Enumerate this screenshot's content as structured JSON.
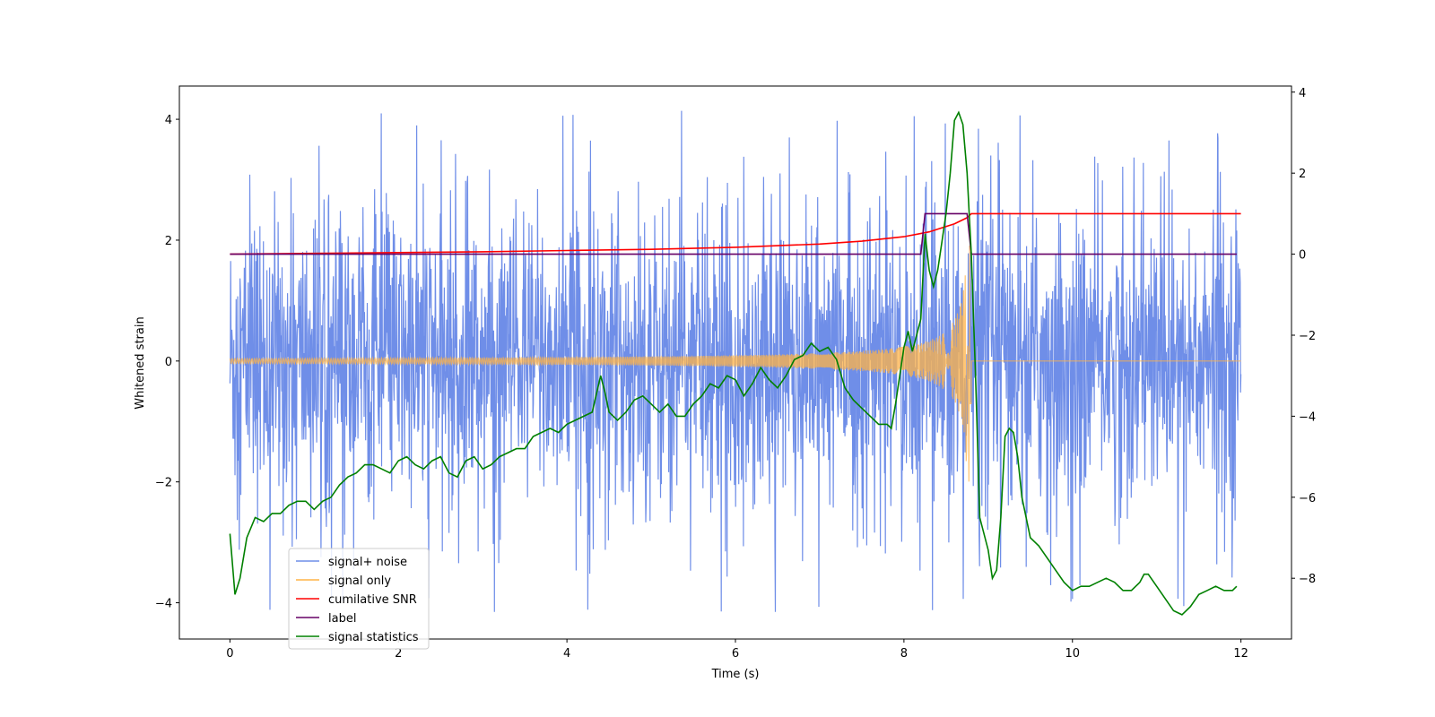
{
  "chart_data": {
    "type": "line",
    "title": "",
    "xlabel": "Time (s)",
    "ylabel": "Whitened strain",
    "xlim": [
      -0.6,
      12.6
    ],
    "ylim": [
      -4.6,
      4.55
    ],
    "y2lim": [
      -9.5,
      4.15
    ],
    "xticks": [
      0,
      2,
      4,
      6,
      8,
      10,
      12
    ],
    "yticks": [
      -4,
      -2,
      0,
      2,
      4
    ],
    "y2ticks": [
      -8,
      -6,
      -4,
      -2,
      0,
      2,
      4
    ],
    "xtick_labels": [
      "0",
      "2",
      "4",
      "6",
      "8",
      "10",
      "12"
    ],
    "ytick_labels": [
      "−4",
      "−2",
      "0",
      "2",
      "4"
    ],
    "y2tick_labels": [
      "−8",
      "−6",
      "−4",
      "−2",
      "0",
      "2",
      "4"
    ],
    "legend_position": "lower-left",
    "series": [
      {
        "name": "signal+ noise",
        "axis": "left",
        "color": "#6f8ee8",
        "kind": "noise_band",
        "x_range": [
          0,
          12
        ],
        "typical_range": [
          -1.4,
          1.4
        ],
        "peak_range": [
          -4.15,
          4.15
        ]
      },
      {
        "name": "signal only",
        "axis": "left",
        "color": "#ffb347",
        "kind": "chirp",
        "x_range": [
          0,
          12
        ],
        "merger_time": 8.8,
        "start_amplitude": 0.04,
        "peak_amplitude": 2.0,
        "after_merger_value": 0
      },
      {
        "name": "cumilative SNR",
        "axis": "right",
        "color": "#ff0000",
        "x": [
          0,
          1,
          2,
          3,
          4,
          5,
          6,
          7,
          7.5,
          8,
          8.3,
          8.6,
          8.75,
          8.8,
          12
        ],
        "values": [
          0,
          0.02,
          0.04,
          0.06,
          0.09,
          0.12,
          0.17,
          0.25,
          0.32,
          0.43,
          0.55,
          0.75,
          0.9,
          1.0,
          1.0
        ]
      },
      {
        "name": "label",
        "axis": "right",
        "color": "#660066",
        "x": [
          0,
          8.2,
          8.25,
          8.75,
          8.8,
          11.95
        ],
        "values": [
          0,
          0,
          1,
          1,
          0,
          0
        ]
      },
      {
        "name": "signal statistics",
        "axis": "right",
        "color": "#008000",
        "x": [
          0,
          0.06,
          0.12,
          0.2,
          0.3,
          0.4,
          0.5,
          0.6,
          0.7,
          0.8,
          0.9,
          1.0,
          1.1,
          1.2,
          1.3,
          1.4,
          1.5,
          1.6,
          1.7,
          1.8,
          1.9,
          2.0,
          2.1,
          2.2,
          2.3,
          2.4,
          2.5,
          2.6,
          2.7,
          2.8,
          2.9,
          3.0,
          3.1,
          3.2,
          3.3,
          3.4,
          3.5,
          3.6,
          3.7,
          3.8,
          3.9,
          4.0,
          4.1,
          4.2,
          4.3,
          4.4,
          4.45,
          4.5,
          4.6,
          4.7,
          4.8,
          4.9,
          5.0,
          5.1,
          5.2,
          5.3,
          5.4,
          5.5,
          5.6,
          5.7,
          5.8,
          5.9,
          6.0,
          6.1,
          6.2,
          6.3,
          6.4,
          6.5,
          6.6,
          6.7,
          6.8,
          6.9,
          7.0,
          7.1,
          7.2,
          7.3,
          7.4,
          7.5,
          7.6,
          7.7,
          7.8,
          7.85,
          7.9,
          8.0,
          8.05,
          8.1,
          8.2,
          8.25,
          8.3,
          8.35,
          8.4,
          8.45,
          8.5,
          8.55,
          8.6,
          8.65,
          8.7,
          8.75,
          8.8,
          8.85,
          8.9,
          9.0,
          9.05,
          9.1,
          9.15,
          9.2,
          9.25,
          9.3,
          9.35,
          9.4,
          9.5,
          9.6,
          9.7,
          9.8,
          9.9,
          10.0,
          10.1,
          10.2,
          10.3,
          10.4,
          10.5,
          10.6,
          10.7,
          10.8,
          10.85,
          10.9,
          11.0,
          11.1,
          11.2,
          11.3,
          11.4,
          11.5,
          11.6,
          11.7,
          11.8,
          11.9,
          11.95
        ],
        "values": [
          -6.9,
          -8.4,
          -8.0,
          -7.0,
          -6.5,
          -6.6,
          -6.4,
          -6.4,
          -6.2,
          -6.1,
          -6.1,
          -6.3,
          -6.1,
          -6.0,
          -5.7,
          -5.5,
          -5.4,
          -5.2,
          -5.2,
          -5.3,
          -5.4,
          -5.1,
          -5.0,
          -5.2,
          -5.3,
          -5.1,
          -5.0,
          -5.4,
          -5.5,
          -5.1,
          -5.0,
          -5.3,
          -5.2,
          -5.0,
          -4.9,
          -4.8,
          -4.8,
          -4.5,
          -4.4,
          -4.3,
          -4.4,
          -4.2,
          -4.1,
          -4.0,
          -3.9,
          -3.0,
          -3.4,
          -3.9,
          -4.1,
          -3.9,
          -3.6,
          -3.5,
          -3.7,
          -3.9,
          -3.7,
          -4.0,
          -4.0,
          -3.7,
          -3.5,
          -3.2,
          -3.3,
          -3.0,
          -3.1,
          -3.5,
          -3.2,
          -2.8,
          -3.1,
          -3.3,
          -3.0,
          -2.6,
          -2.5,
          -2.2,
          -2.4,
          -2.3,
          -2.6,
          -3.3,
          -3.6,
          -3.8,
          -4.0,
          -4.2,
          -4.2,
          -4.3,
          -3.7,
          -2.3,
          -1.9,
          -2.4,
          -1.6,
          0.5,
          -0.4,
          -0.8,
          -0.4,
          0.3,
          1.0,
          2.0,
          3.3,
          3.5,
          3.2,
          2.0,
          0.0,
          -3.0,
          -6.5,
          -7.3,
          -8.0,
          -7.8,
          -6.5,
          -4.5,
          -4.3,
          -4.4,
          -5.0,
          -6.0,
          -7.0,
          -7.2,
          -7.5,
          -7.8,
          -8.1,
          -8.3,
          -8.2,
          -8.2,
          -8.1,
          -8.0,
          -8.1,
          -8.3,
          -8.3,
          -8.1,
          -7.9,
          -7.9,
          -8.2,
          -8.5,
          -8.8,
          -8.9,
          -8.7,
          -8.4,
          -8.3,
          -8.2,
          -8.3,
          -8.3,
          -8.2
        ]
      }
    ]
  }
}
